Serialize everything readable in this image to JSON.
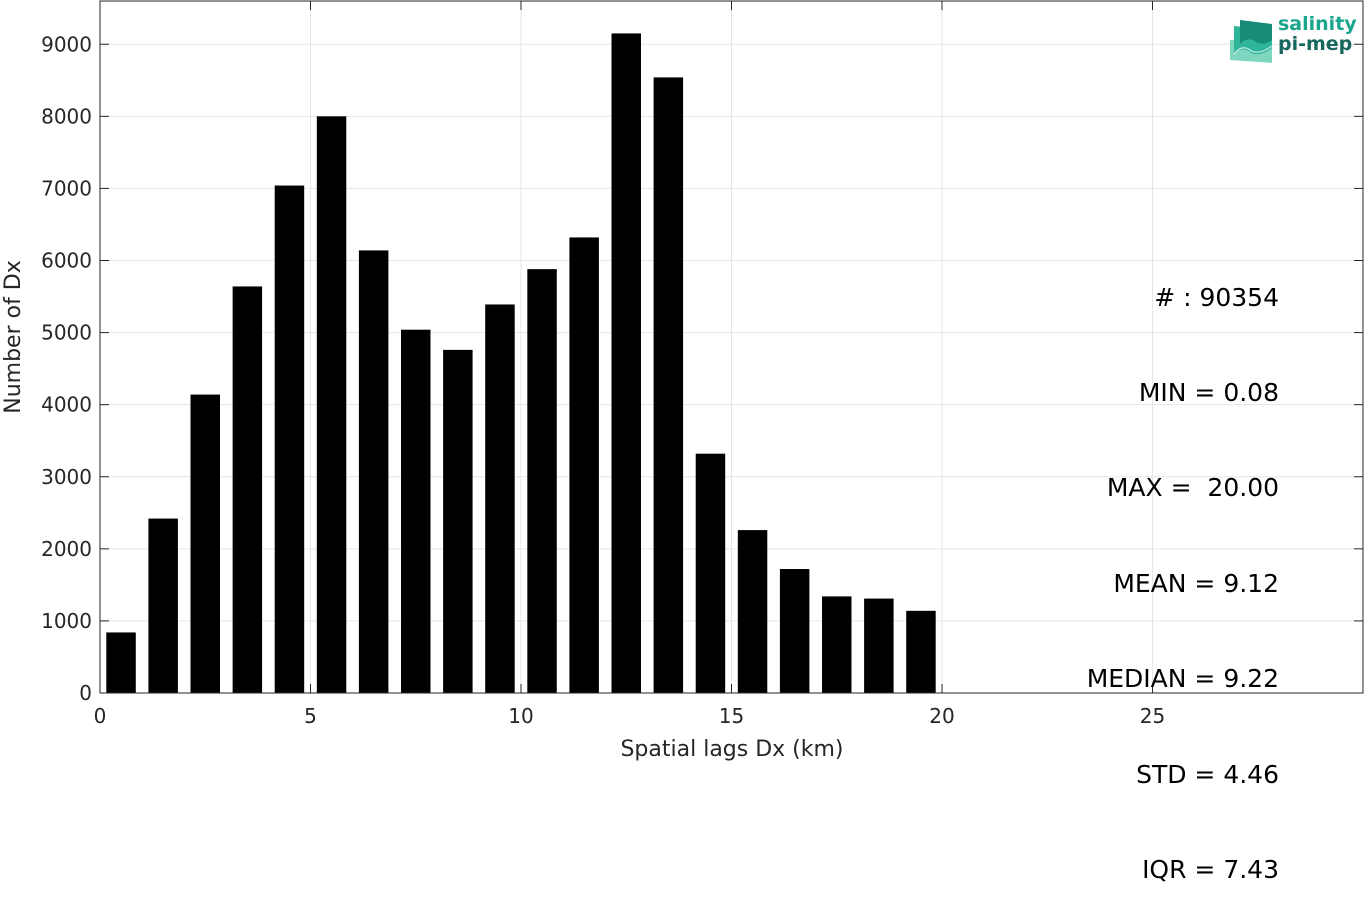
{
  "chart_data": {
    "type": "bar",
    "xlabel": "Spatial lags Dx (km)",
    "ylabel": "Number of Dx",
    "xlim": [
      0,
      30
    ],
    "ylim": [
      0,
      9600
    ],
    "xticks": [
      0,
      5,
      10,
      15,
      20,
      25
    ],
    "yticks": [
      0,
      1000,
      2000,
      3000,
      4000,
      5000,
      6000,
      7000,
      8000,
      9000
    ],
    "grid": true,
    "bar_color": "#000000",
    "bin_width": 1,
    "bar_width_fraction": 0.7,
    "x": [
      0.5,
      1.5,
      2.5,
      3.5,
      4.5,
      5.5,
      6.5,
      7.5,
      8.5,
      9.5,
      10.5,
      11.5,
      12.5,
      13.5,
      14.5,
      15.5,
      16.5,
      17.5,
      18.5,
      19.5
    ],
    "values": [
      840,
      2420,
      4140,
      5640,
      7040,
      8000,
      6140,
      5040,
      4760,
      5390,
      5880,
      6320,
      9150,
      8540,
      3320,
      2260,
      1720,
      1340,
      1310,
      1140
    ],
    "stats": [
      "# : 90354",
      "MIN = 0.08",
      "MAX =  20.00",
      "MEAN = 9.12",
      "MEDIAN = 9.22",
      "STD = 4.46",
      "IQR = 7.43"
    ]
  },
  "logo": {
    "line1": "salinity",
    "line2": "pi-mep",
    "colors": [
      "#1aa58d",
      "#17675f"
    ]
  }
}
